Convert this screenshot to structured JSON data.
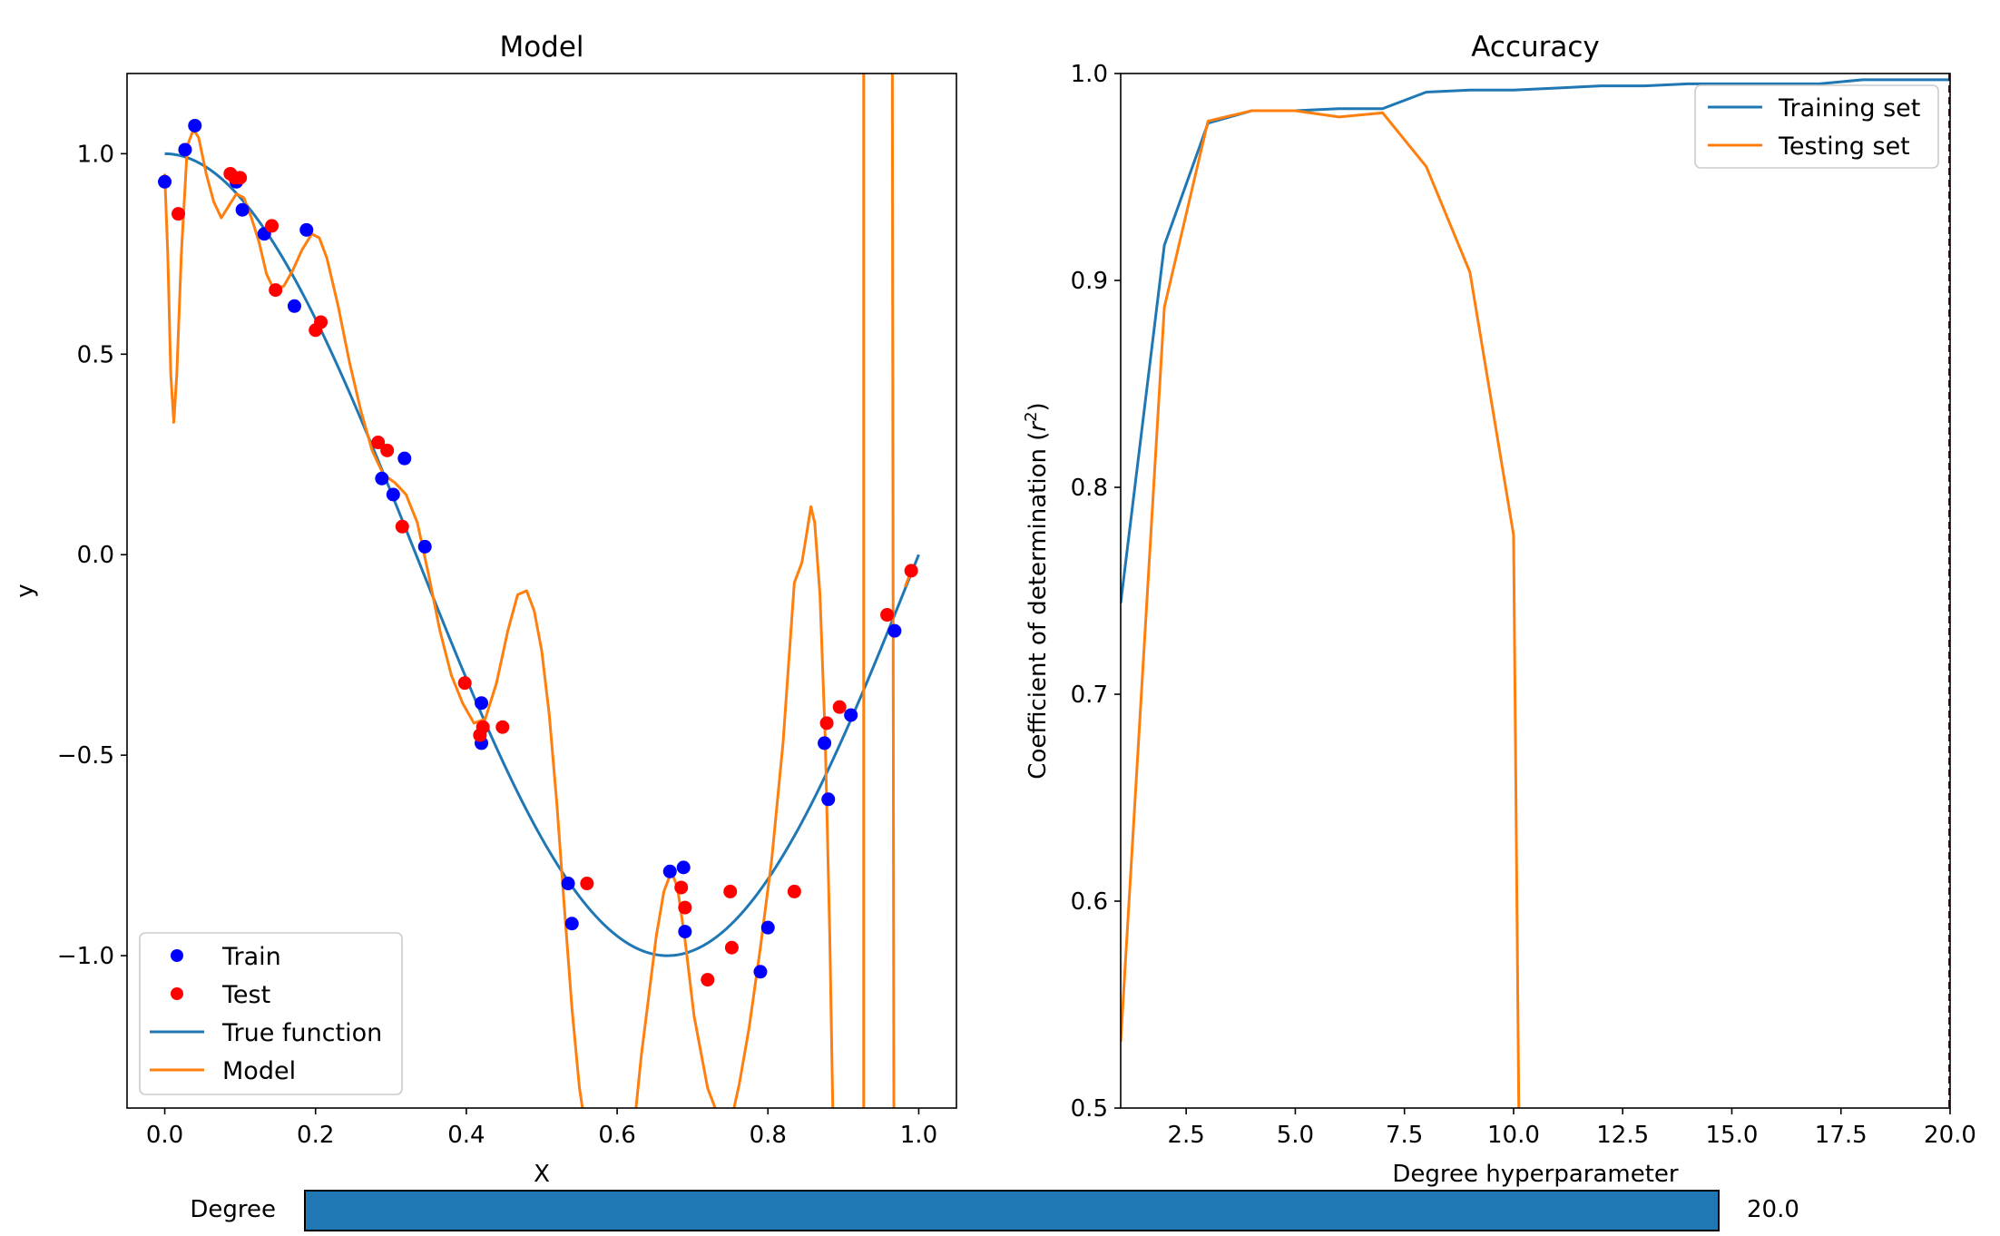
{
  "chart_data": [
    {
      "type": "line",
      "title": "Model",
      "xlabel": "X",
      "ylabel": "y",
      "xlim": [
        -0.05,
        1.05
      ],
      "ylim": [
        -1.38,
        1.2
      ],
      "xticks": [
        0.0,
        0.2,
        0.4,
        0.6,
        0.8,
        1.0
      ],
      "xtick_labels": [
        "0.0",
        "0.2",
        "0.4",
        "0.6",
        "0.8",
        "1.0"
      ],
      "yticks": [
        1.0,
        0.5,
        0.0,
        -0.5,
        -1.0
      ],
      "ytick_labels": [
        "1.0",
        "0.5",
        "0.0",
        "−0.5",
        "−1.0"
      ],
      "legend_position": "lower-left",
      "legend": [
        "Train",
        "Test",
        "True function",
        "Model"
      ],
      "colors": {
        "train": "#0000ff",
        "test": "#ff0000",
        "true_function": "#1f77b4",
        "model": "#ff7f0e"
      },
      "series": [
        {
          "name": "Train",
          "kind": "scatter",
          "points": [
            [
              0.0,
              0.93
            ],
            [
              0.027,
              1.01
            ],
            [
              0.04,
              1.07
            ],
            [
              0.095,
              0.93
            ],
            [
              0.103,
              0.86
            ],
            [
              0.132,
              0.8
            ],
            [
              0.172,
              0.62
            ],
            [
              0.188,
              0.81
            ],
            [
              0.288,
              0.19
            ],
            [
              0.303,
              0.15
            ],
            [
              0.318,
              0.24
            ],
            [
              0.345,
              0.02
            ],
            [
              0.42,
              -0.37
            ],
            [
              0.42,
              -0.47
            ],
            [
              0.535,
              -0.82
            ],
            [
              0.54,
              -0.92
            ],
            [
              0.67,
              -0.79
            ],
            [
              0.688,
              -0.78
            ],
            [
              0.69,
              -0.94
            ],
            [
              0.79,
              -1.04
            ],
            [
              0.8,
              -0.93
            ],
            [
              0.875,
              -0.47
            ],
            [
              0.88,
              -0.61
            ],
            [
              0.91,
              -0.4
            ],
            [
              0.968,
              -0.19
            ]
          ]
        },
        {
          "name": "Test",
          "kind": "scatter",
          "points": [
            [
              0.018,
              0.85
            ],
            [
              0.087,
              0.95
            ],
            [
              0.093,
              0.94
            ],
            [
              0.1,
              0.94
            ],
            [
              0.142,
              0.82
            ],
            [
              0.147,
              0.66
            ],
            [
              0.2,
              0.56
            ],
            [
              0.207,
              0.58
            ],
            [
              0.283,
              0.28
            ],
            [
              0.295,
              0.26
            ],
            [
              0.315,
              0.07
            ],
            [
              0.398,
              -0.32
            ],
            [
              0.418,
              -0.45
            ],
            [
              0.422,
              -0.43
            ],
            [
              0.448,
              -0.43
            ],
            [
              0.56,
              -0.82
            ],
            [
              0.685,
              -0.83
            ],
            [
              0.69,
              -0.88
            ],
            [
              0.72,
              -1.06
            ],
            [
              0.75,
              -0.84
            ],
            [
              0.752,
              -0.98
            ],
            [
              0.835,
              -0.84
            ],
            [
              0.878,
              -0.42
            ],
            [
              0.895,
              -0.38
            ],
            [
              0.958,
              -0.15
            ],
            [
              0.99,
              -0.04
            ]
          ]
        },
        {
          "name": "True function",
          "kind": "line",
          "function": "cos(1.5*pi*x)",
          "x_range": [
            0.0,
            1.0
          ]
        },
        {
          "name": "Model",
          "kind": "line",
          "points": [
            [
              0.0,
              0.95
            ],
            [
              0.004,
              0.75
            ],
            [
              0.008,
              0.45
            ],
            [
              0.012,
              0.33
            ],
            [
              0.016,
              0.45
            ],
            [
              0.022,
              0.75
            ],
            [
              0.03,
              1.02
            ],
            [
              0.038,
              1.06
            ],
            [
              0.045,
              1.04
            ],
            [
              0.055,
              0.95
            ],
            [
              0.065,
              0.88
            ],
            [
              0.075,
              0.84
            ],
            [
              0.085,
              0.87
            ],
            [
              0.095,
              0.9
            ],
            [
              0.105,
              0.89
            ],
            [
              0.115,
              0.84
            ],
            [
              0.125,
              0.78
            ],
            [
              0.135,
              0.7
            ],
            [
              0.145,
              0.66
            ],
            [
              0.158,
              0.67
            ],
            [
              0.17,
              0.71
            ],
            [
              0.182,
              0.76
            ],
            [
              0.195,
              0.8
            ],
            [
              0.205,
              0.79
            ],
            [
              0.215,
              0.74
            ],
            [
              0.23,
              0.62
            ],
            [
              0.245,
              0.48
            ],
            [
              0.26,
              0.36
            ],
            [
              0.275,
              0.26
            ],
            [
              0.29,
              0.2
            ],
            [
              0.305,
              0.18
            ],
            [
              0.32,
              0.15
            ],
            [
              0.335,
              0.08
            ],
            [
              0.35,
              -0.05
            ],
            [
              0.365,
              -0.19
            ],
            [
              0.38,
              -0.3
            ],
            [
              0.395,
              -0.37
            ],
            [
              0.41,
              -0.42
            ],
            [
              0.425,
              -0.41
            ],
            [
              0.44,
              -0.32
            ],
            [
              0.455,
              -0.19
            ],
            [
              0.468,
              -0.1
            ],
            [
              0.48,
              -0.09
            ],
            [
              0.49,
              -0.14
            ],
            [
              0.5,
              -0.24
            ],
            [
              0.51,
              -0.4
            ],
            [
              0.52,
              -0.62
            ],
            [
              0.53,
              -0.88
            ],
            [
              0.54,
              -1.13
            ],
            [
              0.55,
              -1.33
            ],
            [
              0.554,
              -1.38
            ]
          ]
        },
        {
          "name": "Model",
          "kind": "line",
          "points": [
            [
              0.625,
              -1.38
            ],
            [
              0.632,
              -1.25
            ],
            [
              0.642,
              -1.1
            ],
            [
              0.652,
              -0.95
            ],
            [
              0.662,
              -0.84
            ],
            [
              0.672,
              -0.79
            ],
            [
              0.68,
              -0.83
            ],
            [
              0.69,
              -0.96
            ],
            [
              0.702,
              -1.15
            ],
            [
              0.72,
              -1.33
            ],
            [
              0.73,
              -1.38
            ]
          ]
        },
        {
          "name": "Model",
          "kind": "line",
          "points": [
            [
              0.755,
              -1.38
            ],
            [
              0.762,
              -1.32
            ],
            [
              0.775,
              -1.18
            ],
            [
              0.79,
              -0.98
            ],
            [
              0.805,
              -0.76
            ],
            [
              0.82,
              -0.47
            ],
            [
              0.835,
              -0.07
            ],
            [
              0.845,
              -0.02
            ],
            [
              0.852,
              0.06
            ],
            [
              0.857,
              0.12
            ],
            [
              0.862,
              0.08
            ],
            [
              0.869,
              -0.1
            ],
            [
              0.876,
              -0.46
            ],
            [
              0.882,
              -0.95
            ],
            [
              0.886,
              -1.38
            ]
          ]
        },
        {
          "name": "Model",
          "kind": "line",
          "points": [
            [
              0.927,
              -1.38
            ],
            [
              0.927,
              1.2
            ]
          ]
        },
        {
          "name": "Model",
          "kind": "line",
          "points": [
            [
              0.965,
              1.2
            ],
            [
              0.967,
              -1.38
            ]
          ]
        },
        {
          "name": "Model",
          "kind": "line",
          "points": [
            [
              0.982,
              -0.08
            ],
            [
              0.99,
              -0.04
            ]
          ]
        }
      ]
    },
    {
      "type": "line",
      "title": "Accuracy",
      "xlabel": "Degree hyperparameter",
      "ylabel": "Coefficient of determination (r²)",
      "xlim": [
        1,
        20
      ],
      "ylim": [
        0.5,
        1.0
      ],
      "xticks": [
        2.5,
        5.0,
        7.5,
        10.0,
        12.5,
        15.0,
        17.5,
        20.0
      ],
      "xtick_labels": [
        "2.5",
        "5.0",
        "7.5",
        "10.0",
        "12.5",
        "15.0",
        "17.5",
        "20.0"
      ],
      "yticks": [
        1.0,
        0.9,
        0.8,
        0.7,
        0.6,
        0.5
      ],
      "ytick_labels": [
        "1.0",
        "0.9",
        "0.8",
        "0.7",
        "0.6",
        "0.5"
      ],
      "legend_position": "top-right",
      "legend": [
        "Training set",
        "Testing set"
      ],
      "marker_line_x": 20,
      "series": [
        {
          "name": "Training set",
          "color": "#1f77b4",
          "x": [
            1,
            2,
            3,
            4,
            5,
            6,
            7,
            8,
            9,
            10,
            11,
            12,
            13,
            14,
            15,
            16,
            17,
            18,
            19,
            20
          ],
          "y": [
            0.744,
            0.917,
            0.976,
            0.982,
            0.982,
            0.983,
            0.983,
            0.991,
            0.992,
            0.992,
            0.993,
            0.994,
            0.994,
            0.995,
            0.995,
            0.995,
            0.995,
            0.997,
            0.997,
            0.997
          ]
        },
        {
          "name": "Testing set",
          "color": "#ff7f0e",
          "x": [
            1,
            2,
            3,
            4,
            5,
            6,
            7,
            8,
            9,
            10,
            10.12
          ],
          "y": [
            0.532,
            0.887,
            0.977,
            0.982,
            0.982,
            0.979,
            0.981,
            0.955,
            0.904,
            0.777,
            0.5
          ]
        }
      ]
    }
  ],
  "slider": {
    "label": "Degree",
    "value": 20.0,
    "min": 1,
    "max": 20,
    "value_text": "20.0",
    "fill_fraction": 1.0,
    "color": "#1f77b4"
  }
}
